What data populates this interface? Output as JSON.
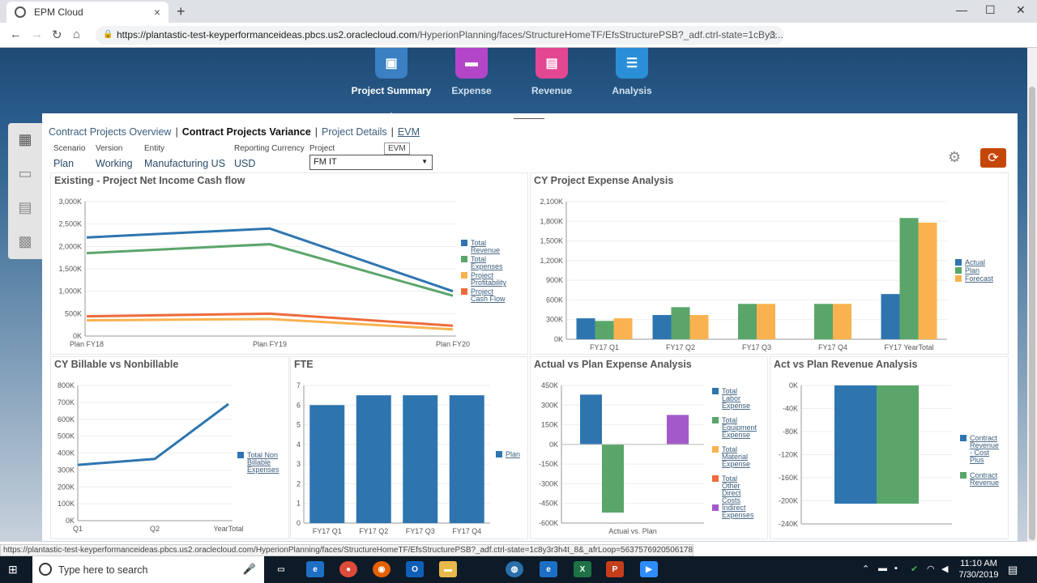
{
  "browser": {
    "tab_title": "EPM Cloud",
    "url_domain": "https://plantastic-test-keyperformanceideas.pbcs.us2.oraclecloud.com",
    "url_path": "/HyperionPlanning/faces/StructureHomeTF/EfsStructurePSB?_adf.ctrl-state=1cBy3...",
    "status_url": "https://plantastic-test-keyperformanceideas.pbcs.us2.oraclecloud.com/HyperionPlanning/faces/StructureHomeTF/EfsStructurePSB?_adf.ctrl-state=1c8y3r3h4t_8&_afrLoop=5637576920506178##"
  },
  "nav_tiles": [
    {
      "label": "Project Summary",
      "icon": "monitor-icon",
      "color": "#3a80c2"
    },
    {
      "label": "Expense",
      "icon": "wallet-icon",
      "color": "#b346c8"
    },
    {
      "label": "Revenue",
      "icon": "cash-register-icon",
      "color": "#e34791"
    },
    {
      "label": "Analysis",
      "icon": "report-icon",
      "color": "#2b8fd8"
    }
  ],
  "breadcrumbs": [
    "Contract Projects Overview",
    "Contract Projects Variance",
    "Project Details",
    "EVM"
  ],
  "tooltip": "EVM",
  "pov": {
    "scenario_label": "Scenario",
    "scenario": "Plan",
    "version_label": "Version",
    "version": "Working",
    "entity_label": "Entity",
    "entity": "Manufacturing US",
    "currency_label": "Reporting Currency",
    "currency": "USD",
    "project_label": "Project",
    "project": "FM IT"
  },
  "colors": {
    "blue": "#2e75b0",
    "green": "#5aa66a",
    "orange": "#f9b24f",
    "red": "#ee6b3b",
    "purple": "#a35ac8",
    "accent": "#c54708"
  },
  "chart_data": [
    {
      "type": "line",
      "title": "Existing - Project Net Income Cash flow",
      "categories": [
        "Plan FY18",
        "Plan FY19",
        "Plan FY20"
      ],
      "yticks": [
        "3,000K",
        "2,500K",
        "2,000K",
        "1,500K",
        "1,000K",
        "500K",
        "0K"
      ],
      "ylim": [
        0,
        3000
      ],
      "series": [
        {
          "name": "Total Revenue",
          "values": [
            2200,
            2400,
            1000
          ]
        },
        {
          "name": "Total Expenses",
          "values": [
            1850,
            2050,
            900
          ]
        },
        {
          "name": "Project Profitability",
          "values": [
            350,
            380,
            150
          ]
        },
        {
          "name": "Project Cash Flow",
          "values": [
            440,
            500,
            230
          ]
        }
      ]
    },
    {
      "type": "bar",
      "title": "CY Project Expense Analysis",
      "categories": [
        "FY17 Q1",
        "FY17 Q2",
        "FY17 Q3",
        "FY17 Q4",
        "FY17 YearTotal"
      ],
      "yticks": [
        "2,100K",
        "1,800K",
        "1,500K",
        "1,200K",
        "900K",
        "600K",
        "300K",
        "0K"
      ],
      "ylim": [
        0,
        2100
      ],
      "series": [
        {
          "name": "Actual",
          "values": [
            320,
            370,
            0,
            0,
            690
          ]
        },
        {
          "name": "Plan",
          "values": [
            280,
            490,
            540,
            540,
            1850
          ]
        },
        {
          "name": "Forecast",
          "values": [
            320,
            370,
            540,
            540,
            1780
          ]
        }
      ]
    },
    {
      "type": "line",
      "title": "CY Billable vs Nonbillable",
      "categories": [
        "Q1",
        "Q2",
        "YearTotal"
      ],
      "yticks": [
        "800K",
        "700K",
        "600K",
        "500K",
        "400K",
        "300K",
        "200K",
        "100K",
        "0K"
      ],
      "ylim": [
        0,
        800
      ],
      "series": [
        {
          "name": "Total Non Billable Expenses",
          "values": [
            330,
            365,
            690
          ]
        }
      ]
    },
    {
      "type": "bar",
      "title": "FTE",
      "categories": [
        "FY17 Q1",
        "FY17 Q2",
        "FY17 Q3",
        "FY17 Q4"
      ],
      "yticks": [
        "7",
        "6",
        "5",
        "4",
        "3",
        "2",
        "1",
        "0"
      ],
      "ylim": [
        0,
        7
      ],
      "series": [
        {
          "name": "Plan",
          "values": [
            6.0,
            6.5,
            6.5,
            6.5
          ]
        }
      ]
    },
    {
      "type": "bar",
      "title": "Actual vs Plan Expense Analysis",
      "categories": [
        "Actual vs. Plan"
      ],
      "yticks": [
        "450K",
        "300K",
        "150K",
        "0K",
        "-150K",
        "-300K",
        "-450K",
        "-600K"
      ],
      "ylim": [
        -600,
        450
      ],
      "series": [
        {
          "name": "Total Labor Expense",
          "values": [
            380
          ]
        },
        {
          "name": "Total Equipment Expense",
          "values": [
            -520
          ]
        },
        {
          "name": "Total Material Expense",
          "values": [
            0
          ]
        },
        {
          "name": "Total Other Direct Costs",
          "values": [
            0
          ]
        },
        {
          "name": "Indirect Expenses",
          "values": [
            225
          ]
        }
      ]
    },
    {
      "type": "bar",
      "title": "Act vs Plan Revenue Analysis",
      "categories": [
        ""
      ],
      "yticks": [
        "0K",
        "-40K",
        "-80K",
        "-120K",
        "-160K",
        "-200K",
        "-240K"
      ],
      "ylim": [
        -240,
        0
      ],
      "series": [
        {
          "name": "Contract Revenue - Cost Plus",
          "values": [
            -205
          ]
        },
        {
          "name": "Contract Revenue",
          "values": [
            -205
          ]
        }
      ]
    }
  ],
  "taskbar": {
    "search_placeholder": "Type here to search",
    "time": "11:10 AM",
    "date": "7/30/2019"
  }
}
